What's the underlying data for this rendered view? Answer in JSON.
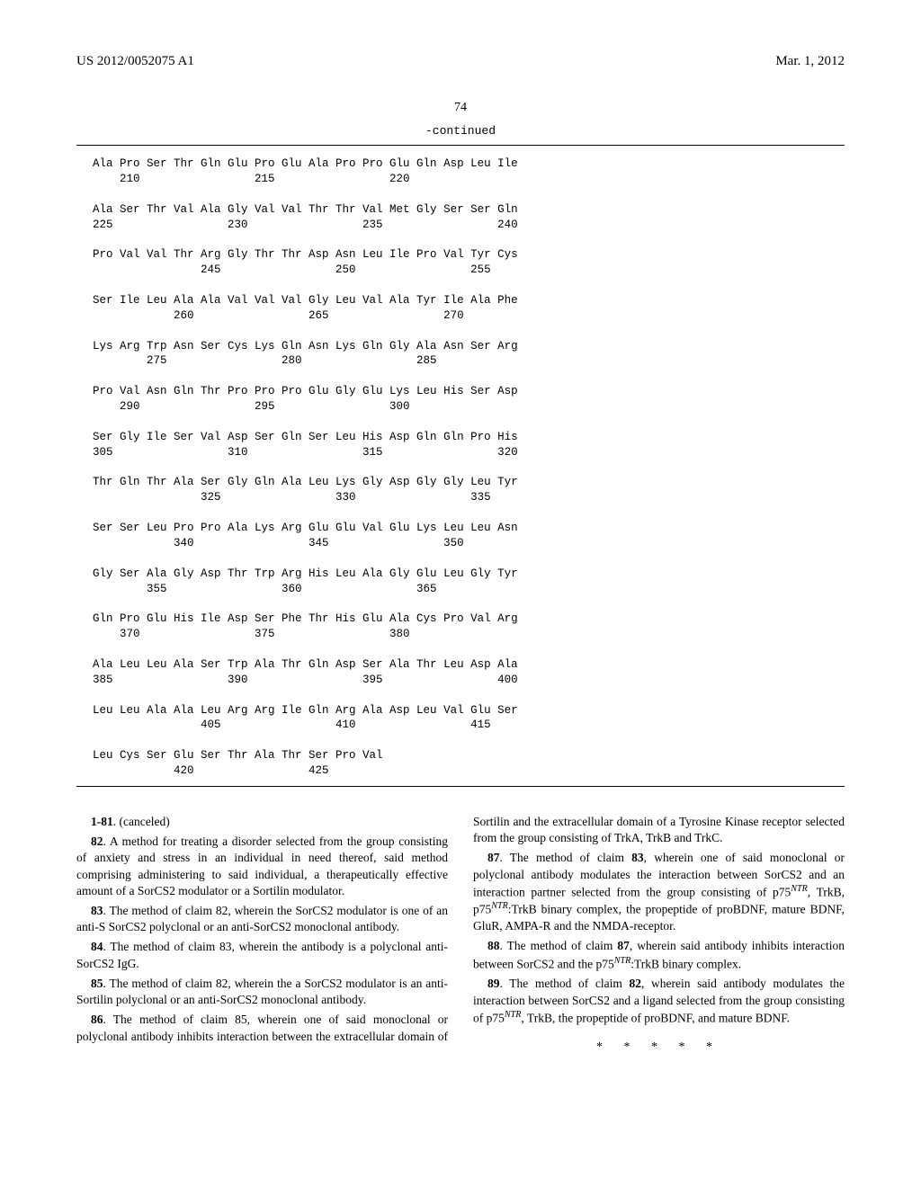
{
  "header": {
    "left": "US 2012/0052075 A1",
    "right": "Mar. 1, 2012"
  },
  "page_number": "74",
  "continued_label": "-continued",
  "sequence": {
    "font_family": "Courier New",
    "font_size_pt": 12.5,
    "lines": [
      "Ala Pro Ser Thr Gln Glu Pro Glu Ala Pro Pro Glu Gln Asp Leu Ile",
      "    210                 215                 220",
      "",
      "Ala Ser Thr Val Ala Gly Val Val Thr Thr Val Met Gly Ser Ser Gln",
      "225                 230                 235                 240",
      "",
      "Pro Val Val Thr Arg Gly Thr Thr Asp Asn Leu Ile Pro Val Tyr Cys",
      "                245                 250                 255",
      "",
      "Ser Ile Leu Ala Ala Val Val Val Gly Leu Val Ala Tyr Ile Ala Phe",
      "            260                 265                 270",
      "",
      "Lys Arg Trp Asn Ser Cys Lys Gln Asn Lys Gln Gly Ala Asn Ser Arg",
      "        275                 280                 285",
      "",
      "Pro Val Asn Gln Thr Pro Pro Pro Glu Gly Glu Lys Leu His Ser Asp",
      "    290                 295                 300",
      "",
      "Ser Gly Ile Ser Val Asp Ser Gln Ser Leu His Asp Gln Gln Pro His",
      "305                 310                 315                 320",
      "",
      "Thr Gln Thr Ala Ser Gly Gln Ala Leu Lys Gly Asp Gly Gly Leu Tyr",
      "                325                 330                 335",
      "",
      "Ser Ser Leu Pro Pro Ala Lys Arg Glu Glu Val Glu Lys Leu Leu Asn",
      "            340                 345                 350",
      "",
      "Gly Ser Ala Gly Asp Thr Trp Arg His Leu Ala Gly Glu Leu Gly Tyr",
      "        355                 360                 365",
      "",
      "Gln Pro Glu His Ile Asp Ser Phe Thr His Glu Ala Cys Pro Val Arg",
      "    370                 375                 380",
      "",
      "Ala Leu Leu Ala Ser Trp Ala Thr Gln Asp Ser Ala Thr Leu Asp Ala",
      "385                 390                 395                 400",
      "",
      "Leu Leu Ala Ala Leu Arg Arg Ile Gln Arg Ala Asp Leu Val Glu Ser",
      "                405                 410                 415",
      "",
      "Leu Cys Ser Glu Ser Thr Ala Thr Ser Pro Val",
      "            420                 425"
    ]
  },
  "claims": [
    {
      "num": "1-81",
      "text": "(canceled)"
    },
    {
      "num": "82",
      "text": "A method for treating a disorder selected from the group consisting of anxiety and stress in an individual in need thereof, said method comprising administering to said individual, a therapeutically effective amount of a SorCS2 modulator or a Sortilin modulator."
    },
    {
      "num": "83",
      "text": "The method of claim 82, wherein the SorCS2 modulator is one of an anti-S SorCS2 polyclonal or an anti-SorCS2 monoclonal antibody."
    },
    {
      "num": "84",
      "text": "The method of claim 83, wherein the antibody is a polyclonal anti-SorCS2 IgG."
    },
    {
      "num": "85",
      "text": "The method of claim 82, wherein the a SorCS2 modulator is an anti-Sortilin polyclonal or an anti-SorCS2 monoclonal antibody."
    },
    {
      "num": "86",
      "text": "The method of claim 85, wherein one of said monoclonal or polyclonal antibody inhibits interaction between the extracellular domain of Sortilin and the extracellular domain of a Tyrosine Kinase receptor selected from the group consisting of TrkA, TrkB and TrkC."
    },
    {
      "num": "87",
      "html": "The method of claim <span class='claim-num'>83</span>, wherein one of said monoclonal or polyclonal antibody modulates the interaction between SorCS2 and an interaction partner selected from the group consisting of p75<span class='sup-it'>NTR</span>, TrkB, p75<span class='sup-it'>NTR</span>:TrkB binary complex, the propeptide of proBDNF, mature BDNF, GluR, AMPA-R and the NMDA-receptor."
    },
    {
      "num": "88",
      "html": "The method of claim <span class='claim-num'>87</span>, wherein said antibody inhibits interaction between SorCS2 and the p75<span class='sup-it'>NTR</span>:TrkB binary complex."
    },
    {
      "num": "89",
      "html": "The method of claim <span class='claim-num'>82</span>, wherein said antibody modulates the interaction between SorCS2 and a ligand selected from the group consisting of p75<span class='sup-it'>NTR</span>, TrkB, the propeptide of proBDNF, and mature BDNF."
    }
  ],
  "endmark": "* * * * *"
}
